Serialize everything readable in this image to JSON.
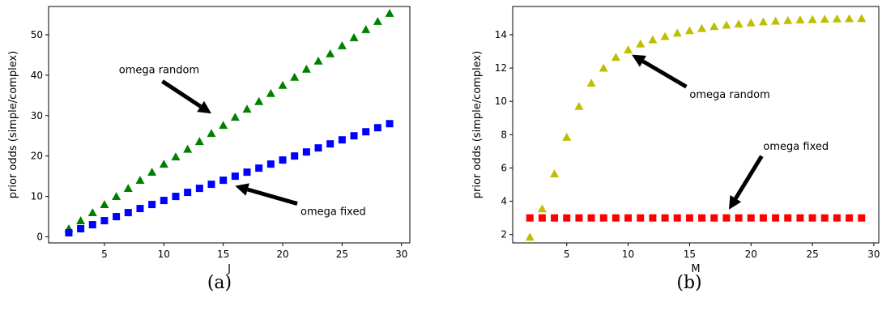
{
  "chart_data": [
    {
      "type": "scatter",
      "caption": "(a)",
      "xlabel": "J",
      "ylabel": "prior odds (simple/complex)",
      "xlim": [
        0.3,
        30.7
      ],
      "ylim": [
        -1.5,
        57
      ],
      "xticks": [
        5,
        10,
        15,
        20,
        25,
        30
      ],
      "yticks": [
        0,
        10,
        20,
        30,
        40,
        50
      ],
      "series": [
        {
          "name": "omega random",
          "marker": "triangle",
          "color": "#008000",
          "x": [
            2,
            3,
            4,
            5,
            6,
            7,
            8,
            9,
            10,
            11,
            12,
            13,
            14,
            15,
            16,
            17,
            18,
            19,
            20,
            21,
            22,
            23,
            24,
            25,
            26,
            27,
            28,
            29
          ],
          "values": [
            2,
            4,
            6,
            8,
            10,
            12,
            14,
            16,
            18,
            19.8,
            21.7,
            23.6,
            25.6,
            27.6,
            29.6,
            31.6,
            33.5,
            35.5,
            37.5,
            39.5,
            41.5,
            43.5,
            45.3,
            47.3,
            49.3,
            51.3,
            53.3,
            55.3
          ]
        },
        {
          "name": "omega fixed",
          "marker": "square",
          "color": "#0000ff",
          "x": [
            2,
            3,
            4,
            5,
            6,
            7,
            8,
            9,
            10,
            11,
            12,
            13,
            14,
            15,
            16,
            17,
            18,
            19,
            20,
            21,
            22,
            23,
            24,
            25,
            26,
            27,
            28,
            29
          ],
          "values": [
            1,
            2,
            3,
            4,
            5,
            6,
            7,
            8,
            9,
            10,
            11,
            12,
            13,
            14,
            15,
            16,
            17,
            18,
            19,
            20,
            21,
            22,
            23,
            24,
            25,
            26,
            27,
            28
          ]
        }
      ],
      "annotations": [
        {
          "text": "omega random",
          "text_pos": [
            9.6,
            40.5
          ],
          "xy": [
            14,
            30.5
          ],
          "anchor": "middle"
        },
        {
          "text": "omega fixed",
          "text_pos": [
            21.5,
            5.4
          ],
          "xy": [
            16,
            12.6
          ],
          "anchor": "start"
        }
      ]
    },
    {
      "type": "scatter",
      "caption": "(b)",
      "xlabel": "M",
      "ylabel": "prior odds (simple/complex)",
      "xlim": [
        0.6,
        30.4
      ],
      "ylim": [
        1.5,
        15.7
      ],
      "xticks": [
        5,
        10,
        15,
        20,
        25,
        30
      ],
      "yticks": [
        2,
        4,
        6,
        8,
        10,
        12,
        14
      ],
      "series": [
        {
          "name": "omega random",
          "marker": "triangle",
          "color": "#bfbf00",
          "x": [
            2,
            3,
            4,
            5,
            6,
            7,
            8,
            9,
            10,
            11,
            12,
            13,
            14,
            15,
            16,
            17,
            18,
            19,
            20,
            21,
            22,
            23,
            24,
            25,
            26,
            27,
            28,
            29
          ],
          "values": [
            1.85,
            3.55,
            5.65,
            7.85,
            9.7,
            11.1,
            12,
            12.65,
            13.1,
            13.45,
            13.7,
            13.9,
            14.1,
            14.25,
            14.38,
            14.5,
            14.58,
            14.65,
            14.72,
            14.78,
            14.82,
            14.86,
            14.9,
            14.92,
            14.94,
            14.96,
            14.97,
            14.98
          ]
        },
        {
          "name": "omega fixed",
          "marker": "square",
          "color": "#ff0000",
          "x": [
            2,
            3,
            4,
            5,
            6,
            7,
            8,
            9,
            10,
            11,
            12,
            13,
            14,
            15,
            16,
            17,
            18,
            19,
            20,
            21,
            22,
            23,
            24,
            25,
            26,
            27,
            28,
            29
          ],
          "values": [
            3,
            3,
            3,
            3,
            3,
            3,
            3,
            3,
            3,
            3,
            3,
            3,
            3,
            3,
            3,
            3,
            3,
            3,
            3,
            3,
            3,
            3,
            3,
            3,
            3,
            3,
            3,
            3
          ]
        }
      ],
      "annotations": [
        {
          "text": "omega random",
          "text_pos": [
            15,
            10.2
          ],
          "xy": [
            10.3,
            12.8
          ],
          "anchor": "start"
        },
        {
          "text": "omega fixed",
          "text_pos": [
            21,
            7.1
          ],
          "xy": [
            18.2,
            3.5
          ],
          "anchor": "start"
        }
      ]
    }
  ]
}
